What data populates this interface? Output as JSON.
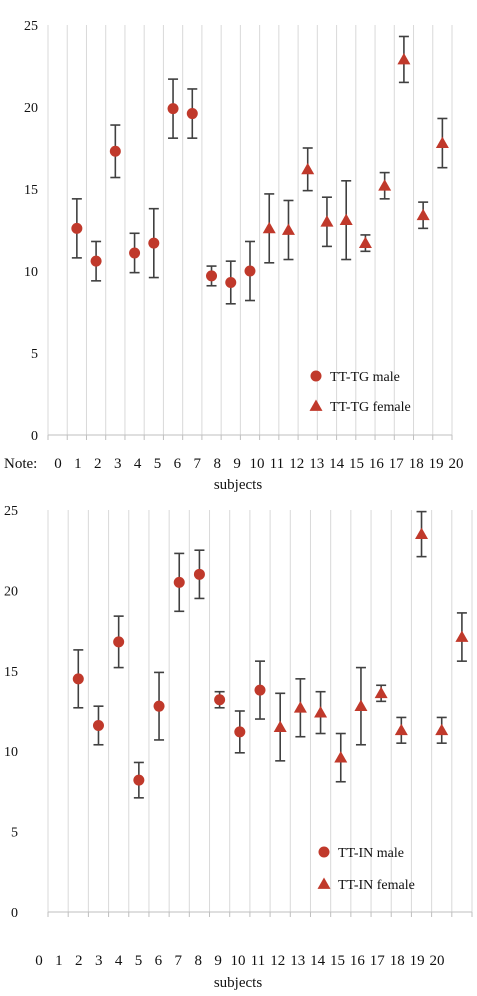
{
  "colors": {
    "marker": "#c0392b",
    "error_bar": "#404040",
    "grid": "#d9d9d9",
    "axis": "#bfbfbf"
  },
  "chart_data": [
    {
      "type": "scatter",
      "note_label": "Note:",
      "xlabel": "subjects",
      "ylim": [
        0,
        25
      ],
      "yticks": [
        "0",
        "5",
        "10",
        "15",
        "20",
        "25"
      ],
      "xticks": [
        "0",
        "1",
        "2",
        "3",
        "4",
        "5",
        "6",
        "7",
        "8",
        "9",
        "10",
        "11",
        "12",
        "13",
        "14",
        "15",
        "16",
        "17",
        "18",
        "19",
        "20"
      ],
      "grid": true,
      "legend_position": "bottom-right",
      "series": [
        {
          "name": "TT-TG male",
          "marker": "circle",
          "x": [
            1,
            2,
            3,
            4,
            5,
            6,
            7,
            8,
            9,
            10
          ],
          "y": [
            12.6,
            10.6,
            17.3,
            11.1,
            11.7,
            19.9,
            19.6,
            9.7,
            9.3,
            10.0
          ],
          "err": [
            1.8,
            1.2,
            1.6,
            1.2,
            2.1,
            1.8,
            1.5,
            0.6,
            1.3,
            1.8
          ]
        },
        {
          "name": "TT-TG female",
          "marker": "triangle",
          "x": [
            11,
            12,
            13,
            14,
            15,
            16,
            17,
            18,
            19,
            20
          ],
          "y": [
            12.6,
            12.5,
            16.2,
            13.0,
            13.1,
            11.7,
            15.2,
            22.9,
            13.4,
            17.8
          ],
          "err": [
            2.1,
            1.8,
            1.3,
            1.5,
            2.4,
            0.5,
            0.8,
            1.4,
            0.8,
            1.5
          ]
        }
      ]
    },
    {
      "type": "scatter",
      "xlabel": "subjects",
      "ylim": [
        0,
        25
      ],
      "yticks": [
        "0",
        "5",
        "10",
        "15",
        "20",
        "25"
      ],
      "xticks": [
        "0",
        "1",
        "2",
        "3",
        "4",
        "5",
        "6",
        "7",
        "8",
        "9",
        "10",
        "11",
        "12",
        "13",
        "14",
        "15",
        "16",
        "17",
        "18",
        "19",
        "20"
      ],
      "grid": true,
      "legend_position": "bottom-right",
      "series": [
        {
          "name": "TT-IN male",
          "marker": "circle",
          "x": [
            1,
            2,
            3,
            4,
            5,
            6,
            7,
            8,
            9,
            10
          ],
          "y": [
            14.5,
            11.6,
            16.8,
            8.2,
            12.8,
            20.5,
            21.0,
            13.2,
            11.2,
            13.8
          ],
          "err": [
            1.8,
            1.2,
            1.6,
            1.1,
            2.1,
            1.8,
            1.5,
            0.5,
            1.3,
            1.8
          ]
        },
        {
          "name": "TT-IN female",
          "marker": "triangle",
          "x": [
            11,
            12,
            13,
            14,
            15,
            16,
            17,
            18,
            19,
            20
          ],
          "y": [
            11.5,
            12.7,
            12.4,
            9.6,
            12.8,
            13.6,
            11.3,
            23.5,
            11.3,
            17.1
          ],
          "err": [
            2.1,
            1.8,
            1.3,
            1.5,
            2.4,
            0.5,
            0.8,
            1.4,
            0.8,
            1.5
          ]
        }
      ]
    }
  ]
}
